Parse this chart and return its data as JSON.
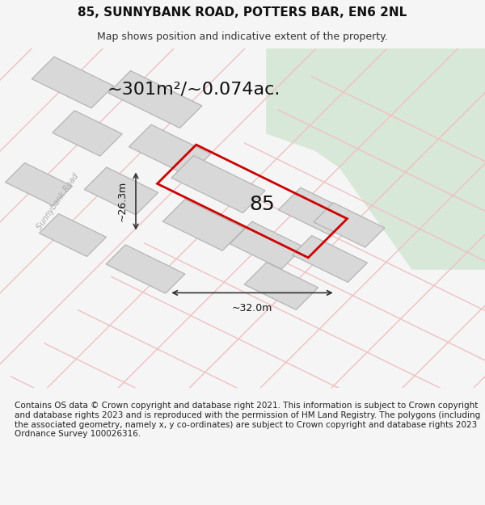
{
  "title": "85, SUNNYBANK ROAD, POTTERS BAR, EN6 2NL",
  "subtitle": "Map shows position and indicative extent of the property.",
  "area_text": "~301m²/~0.074ac.",
  "width_label": "~32.0m",
  "height_label": "~26.3m",
  "house_number": "85",
  "road_label": "Sunnybank Road",
  "footer_text": "Contains OS data © Crown copyright and database right 2021. This information is subject to Crown copyright and database rights 2023 and is reproduced with the permission of HM Land Registry. The polygons (including the associated geometry, namely x, y co-ordinates) are subject to Crown copyright and database rights 2023 Ordnance Survey 100026316.",
  "bg_color": "#f5f5f5",
  "map_bg": "#ffffff",
  "green_area_color": "#d8e8d8",
  "road_outline_color": "#e8c8c8",
  "building_fill": "#d8d8d8",
  "building_edge": "#b0b0b0",
  "plot_edge_color": "#cc0000",
  "plot_fill_color": "#ffffff",
  "plot_fill_alpha": 0.0,
  "arrow_color": "#333333",
  "title_fontsize": 11,
  "subtitle_fontsize": 9,
  "area_fontsize": 16,
  "label_fontsize": 9,
  "footer_fontsize": 7.5
}
